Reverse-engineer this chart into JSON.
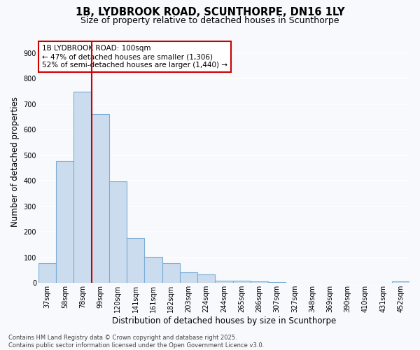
{
  "title_line1": "1B, LYDBROOK ROAD, SCUNTHORPE, DN16 1LY",
  "title_line2": "Size of property relative to detached houses in Scunthorpe",
  "xlabel": "Distribution of detached houses by size in Scunthorpe",
  "ylabel": "Number of detached properties",
  "categories": [
    "37sqm",
    "58sqm",
    "78sqm",
    "99sqm",
    "120sqm",
    "141sqm",
    "161sqm",
    "182sqm",
    "203sqm",
    "224sqm",
    "244sqm",
    "265sqm",
    "286sqm",
    "307sqm",
    "327sqm",
    "348sqm",
    "369sqm",
    "390sqm",
    "410sqm",
    "431sqm",
    "452sqm"
  ],
  "values": [
    78,
    478,
    750,
    660,
    398,
    176,
    102,
    78,
    43,
    33,
    10,
    10,
    5,
    3,
    2,
    1,
    0,
    0,
    0,
    0,
    5
  ],
  "bar_color": "#ccdcef",
  "bar_edge_color": "#7aadd4",
  "vline_x_index": 3,
  "vline_color": "#cc0000",
  "annotation_text": "1B LYDBROOK ROAD: 100sqm\n← 47% of detached houses are smaller (1,306)\n52% of semi-detached houses are larger (1,440) →",
  "annotation_box_facecolor": "#ffffff",
  "annotation_box_edgecolor": "#cc0000",
  "ylim": [
    0,
    950
  ],
  "yticks": [
    0,
    100,
    200,
    300,
    400,
    500,
    600,
    700,
    800,
    900
  ],
  "footnote": "Contains HM Land Registry data © Crown copyright and database right 2025.\nContains public sector information licensed under the Open Government Licence v3.0.",
  "bg_color": "#f7f9fc",
  "plot_bg_color": "#f7f9fc",
  "grid_color": "#ffffff",
  "title_fontsize": 10.5,
  "subtitle_fontsize": 9,
  "xlabel_fontsize": 8.5,
  "ylabel_fontsize": 8.5,
  "tick_fontsize": 7,
  "annot_fontsize": 7.5,
  "footnote_fontsize": 6
}
